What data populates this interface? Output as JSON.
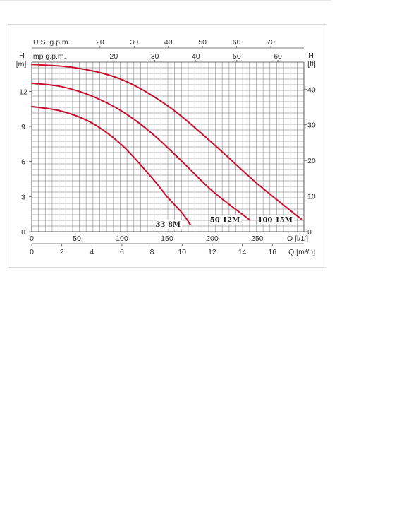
{
  "chart_data": {
    "type": "line",
    "title": "",
    "y_left": {
      "unit_letter": "H",
      "unit": "[m]",
      "ticks": [
        "0",
        "3",
        "6",
        "9",
        "12"
      ],
      "range": [
        0,
        14.5
      ]
    },
    "y_right": {
      "unit_letter": "H",
      "unit": "[ft]",
      "ticks": [
        "0",
        "10",
        "20",
        "30",
        "40"
      ],
      "range_ft": [
        0,
        47.6
      ]
    },
    "x_top_us": {
      "label": "U.S. g.p.m.",
      "ticks": [
        "20",
        "30",
        "40",
        "50",
        "60",
        "70"
      ]
    },
    "x_top_imp": {
      "label": "Imp g.p.m.",
      "ticks": [
        "20",
        "30",
        "40",
        "50",
        "60"
      ]
    },
    "x_lmin": {
      "label": "Q [l/1']",
      "ticks": [
        "0",
        "50",
        "100",
        "150",
        "200",
        "250"
      ]
    },
    "x_m3h": {
      "label": "Q [m³/h]",
      "ticks": [
        "0",
        "2",
        "4",
        "6",
        "8",
        "10",
        "12",
        "14",
        "16"
      ],
      "range": [
        0,
        18.1
      ]
    },
    "grid": true,
    "series": [
      {
        "name": "33 8M",
        "color": "#c8102e",
        "points": [
          [
            0,
            10.7
          ],
          [
            2,
            10.3
          ],
          [
            4,
            9.3
          ],
          [
            6,
            7.4
          ],
          [
            8,
            4.6
          ],
          [
            9,
            3.0
          ],
          [
            10,
            1.6
          ],
          [
            10.55,
            0.6
          ]
        ]
      },
      {
        "name": "50 12M",
        "color": "#c8102e",
        "points": [
          [
            0,
            12.7
          ],
          [
            2,
            12.4
          ],
          [
            4,
            11.6
          ],
          [
            6,
            10.3
          ],
          [
            8,
            8.4
          ],
          [
            10,
            6.0
          ],
          [
            12,
            3.5
          ],
          [
            14.5,
            1.0
          ]
        ]
      },
      {
        "name": "100 15M",
        "color": "#c8102e",
        "points": [
          [
            0,
            14.3
          ],
          [
            3,
            14.0
          ],
          [
            6,
            13.0
          ],
          [
            9,
            10.8
          ],
          [
            12,
            7.6
          ],
          [
            15,
            4.1
          ],
          [
            18.0,
            1.0
          ]
        ]
      }
    ]
  }
}
